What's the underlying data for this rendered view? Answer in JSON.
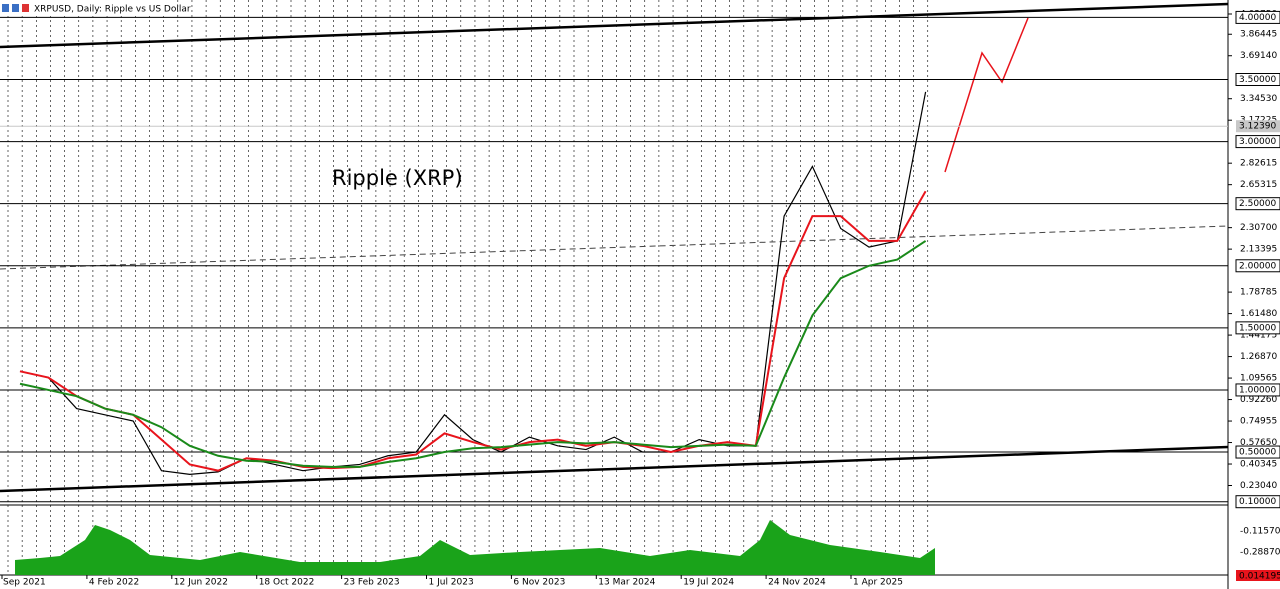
{
  "chart_data": {
    "type": "line",
    "title": "XRPUSD, Daily:  Ripple vs US Dollar",
    "annotation": "Ripple (XRP)",
    "categories": [
      "Sep 2021",
      null,
      null,
      "4 Feb 2022",
      null,
      null,
      "12 Jun 2022",
      null,
      null,
      "18 Oct 2022",
      null,
      null,
      "23 Feb 2023",
      null,
      null,
      "1 Jul 2023",
      null,
      null,
      "6 Nov 2023",
      null,
      null,
      "13 Mar 2024",
      null,
      null,
      "19 Jul 2024",
      null,
      null,
      "24 Nov 2024",
      null,
      null,
      "1 Apr 2025",
      null,
      null
    ],
    "series": [
      {
        "color": "#000000",
        "values": [
          1.15,
          1.1,
          0.85,
          0.8,
          0.75,
          0.35,
          0.32,
          0.34,
          0.45,
          0.4,
          0.35,
          0.38,
          0.4,
          0.47,
          0.5,
          0.8,
          0.6,
          0.5,
          0.62,
          0.55,
          0.52,
          0.62,
          0.5,
          0.5,
          0.6,
          0.55,
          0.55,
          2.4,
          2.8,
          2.3,
          2.15,
          2.2,
          3.4
        ]
      },
      {
        "color": "#e8141c",
        "values": [
          1.15,
          1.1,
          0.95,
          0.85,
          0.8,
          0.6,
          0.4,
          0.35,
          0.45,
          0.43,
          0.38,
          0.37,
          0.38,
          0.45,
          0.48,
          0.65,
          0.58,
          0.52,
          0.58,
          0.6,
          0.55,
          0.58,
          0.55,
          0.5,
          0.55,
          0.58,
          0.55,
          1.9,
          2.4,
          2.4,
          2.2,
          2.2,
          2.6
        ]
      },
      {
        "color": "#1a8a1a",
        "values": [
          1.05,
          1.0,
          0.95,
          0.85,
          0.8,
          0.7,
          0.55,
          0.47,
          0.43,
          0.42,
          0.39,
          0.38,
          0.38,
          0.42,
          0.45,
          0.5,
          0.53,
          0.54,
          0.56,
          0.58,
          0.57,
          0.58,
          0.56,
          0.54,
          0.55,
          0.56,
          0.55,
          1.1,
          1.6,
          1.9,
          2.0,
          2.05,
          2.2
        ]
      }
    ],
    "ylim": [
      0.05735,
      4.0275
    ],
    "yticks": [
      {
        "value": 4.0275,
        "label": "4.02750"
      },
      {
        "value": 3.86445,
        "label": "3.86445"
      },
      {
        "value": 3.6914,
        "label": "3.69140"
      },
      {
        "value": 3.3453,
        "label": "3.34530"
      },
      {
        "value": 3.17225,
        "label": "3.17225"
      },
      {
        "value": 2.82615,
        "label": "2.82615"
      },
      {
        "value": 2.65315,
        "label": "2.65315"
      },
      {
        "value": 2.307,
        "label": "2.30700"
      },
      {
        "value": 2.13395,
        "label": "2.13395"
      },
      {
        "value": 1.78785,
        "label": "1.78785"
      },
      {
        "value": 1.6148,
        "label": "1.61480"
      },
      {
        "value": 1.44175,
        "label": "1.44175"
      },
      {
        "value": 1.2687,
        "label": "1.26870"
      },
      {
        "value": 1.09565,
        "label": "1.09565"
      },
      {
        "value": 0.9226,
        "label": "0.92260"
      },
      {
        "value": 0.74955,
        "label": "0.74955"
      },
      {
        "value": 0.5765,
        "label": "0.57650"
      },
      {
        "value": 0.40345,
        "label": "0.40345"
      },
      {
        "value": 0.2304,
        "label": "0.23040"
      }
    ],
    "levels": [
      {
        "value": 4,
        "label": "4.00000"
      },
      {
        "value": 3.5,
        "label": "3.50000"
      },
      {
        "value": 3,
        "label": "3.00000"
      },
      {
        "value": 2.5,
        "label": "2.50000"
      },
      {
        "value": 2,
        "label": "2.00000"
      },
      {
        "value": 1.5,
        "label": "1.50000"
      },
      {
        "value": 1,
        "label": "1.00000"
      },
      {
        "value": 0.5,
        "label": "0.50000"
      },
      {
        "value": 0.1,
        "label": "0.10000"
      }
    ],
    "current_price": {
      "value": 3.1239,
      "label": "3.12390"
    },
    "volume_axis_labels": [
      "-0.11570",
      "-0.28870"
    ],
    "volume_last": "0.014195"
  }
}
